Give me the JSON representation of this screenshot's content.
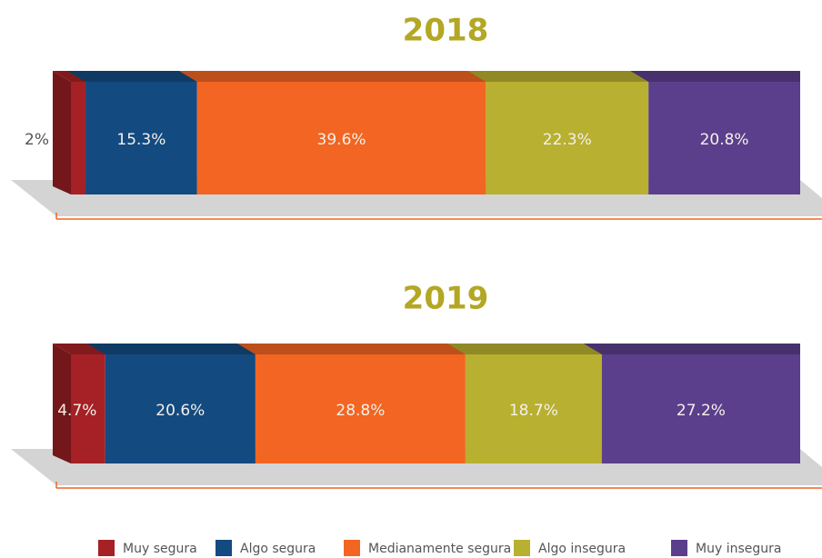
{
  "chart_data": {
    "type": "bar",
    "stacked": true,
    "orientation": "horizontal",
    "categories": [
      "2018",
      "2019"
    ],
    "series": [
      {
        "name": "Muy segura",
        "color": "#a52125",
        "values": [
          2,
          4.7
        ],
        "value_labels": [
          "2%",
          "4.7%"
        ]
      },
      {
        "name": "Algo segura",
        "color": "#134a80",
        "values": [
          15.3,
          20.6
        ],
        "value_labels": [
          "15.3%",
          "20.6%"
        ]
      },
      {
        "name": "Medianamente segura",
        "color": "#f26522",
        "values": [
          39.6,
          28.8
        ],
        "value_labels": [
          "39.6%",
          "28.8%"
        ]
      },
      {
        "name": "Algo insegura",
        "color": "#b8b030",
        "values": [
          22.3,
          18.7
        ],
        "value_labels": [
          "22.3%",
          "18.7%"
        ]
      },
      {
        "name": "Muy insegura",
        "color": "#5b3f8c",
        "values": [
          20.8,
          27.2
        ],
        "value_labels": [
          "20.8%",
          "27.2%"
        ]
      }
    ]
  }
}
